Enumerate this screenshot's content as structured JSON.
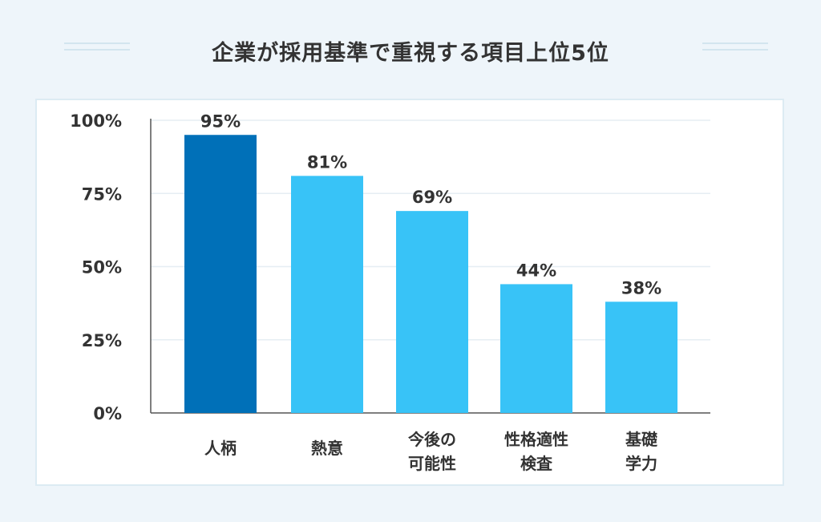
{
  "chart_data": {
    "type": "bar",
    "title": "企業が採用基準で重視する項目上位5位",
    "categories": [
      "人柄",
      "熱意",
      "今後の可能性",
      "性格適性検査",
      "基礎学力"
    ],
    "category_lines": [
      [
        "人柄"
      ],
      [
        "熱意"
      ],
      [
        "今後の",
        "可能性"
      ],
      [
        "性格適性",
        "検査"
      ],
      [
        "基礎",
        "学力"
      ]
    ],
    "values": [
      95,
      81,
      69,
      44,
      38
    ],
    "value_labels": [
      "95%",
      "81%",
      "69%",
      "44%",
      "38%"
    ],
    "ylim": [
      0,
      100
    ],
    "yticks": [
      0,
      25,
      50,
      75,
      100
    ],
    "ytick_labels": [
      "0%",
      "25%",
      "50%",
      "75%",
      "100%"
    ],
    "xlabel": "",
    "ylabel": "",
    "grid": true,
    "legend": "none",
    "colors": {
      "highlight": "#0070b8",
      "bar": "#38c3f7",
      "grid": "#e6eef3",
      "axis": "#555555"
    },
    "highlight_index": 0
  }
}
